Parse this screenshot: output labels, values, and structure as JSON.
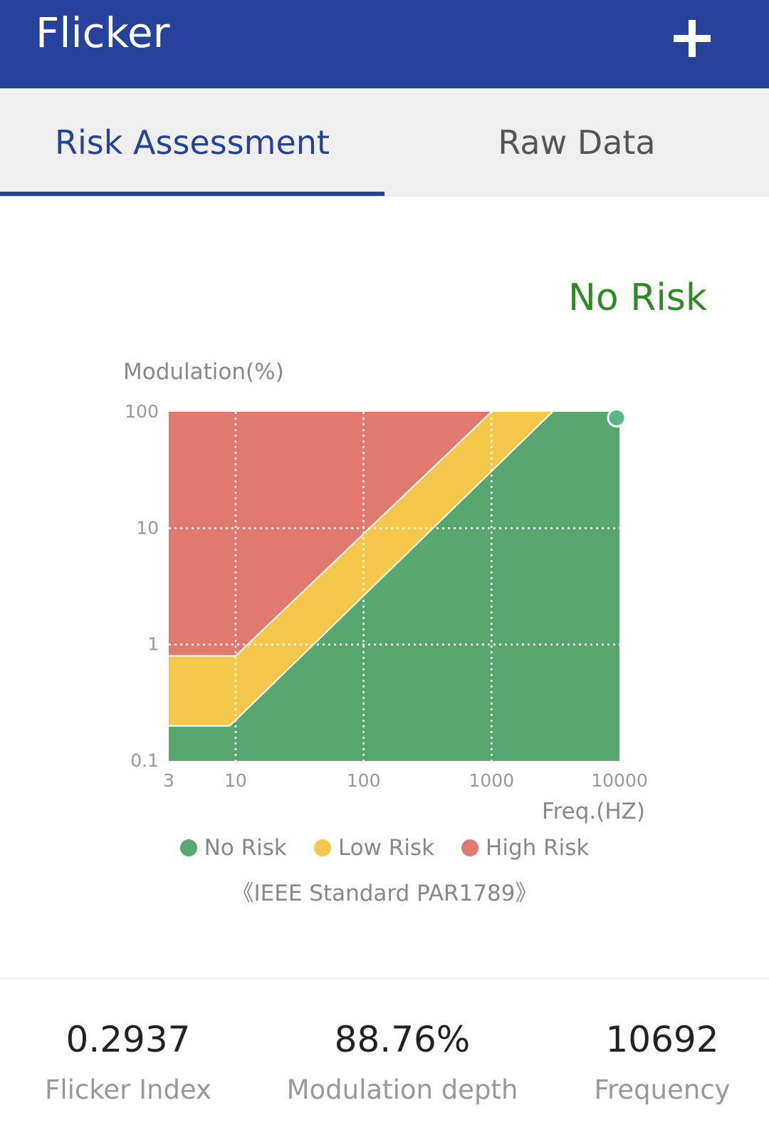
{
  "app": {
    "title": "Flicker",
    "add_icon": "plus-icon"
  },
  "tabs": [
    {
      "label": "Risk Assessment",
      "active": true
    },
    {
      "label": "Raw Data",
      "active": false
    }
  ],
  "risk_status": "No Risk",
  "colors": {
    "primary": "#26429a",
    "no_risk": "#58a770",
    "low_risk": "#f5c84b",
    "high_risk": "#e07a6e",
    "status_text": "#2e8b22"
  },
  "chart_data": {
    "type": "area",
    "ylabel": "Modulation(%)",
    "xlabel": "Freq.(HZ)",
    "x_scale": "log",
    "y_scale": "log",
    "xlim": [
      3,
      10000
    ],
    "ylim": [
      0.1,
      100
    ],
    "x_ticks": [
      "3",
      "10",
      "100",
      "1000",
      "10000"
    ],
    "y_ticks": [
      "100",
      "10",
      "1",
      "0.1"
    ],
    "grid": true,
    "regions": [
      {
        "name": "High Risk",
        "color": "#e07a6e"
      },
      {
        "name": "Low Risk",
        "color": "#f5c84b"
      },
      {
        "name": "No Risk",
        "color": "#58a770"
      }
    ],
    "low_risk_boundary": [
      [
        3,
        0.8
      ],
      [
        10,
        0.8
      ],
      [
        1000,
        100
      ]
    ],
    "no_risk_boundary": [
      [
        3,
        0.2
      ],
      [
        9,
        0.2
      ],
      [
        3000,
        100
      ]
    ],
    "measurement": {
      "x": 10000,
      "y": 88.76
    }
  },
  "legend": [
    {
      "label": "No Risk",
      "color": "#58a770"
    },
    {
      "label": "Low Risk",
      "color": "#f5c84b"
    },
    {
      "label": "High Risk",
      "color": "#e07a6e"
    }
  ],
  "standard": "《IEEE Standard PAR1789》",
  "stats": [
    {
      "value": "0.2937",
      "label": "Flicker Index"
    },
    {
      "value": "88.76%",
      "label": "Modulation depth"
    },
    {
      "value": "10692",
      "label": "Frequency"
    }
  ]
}
